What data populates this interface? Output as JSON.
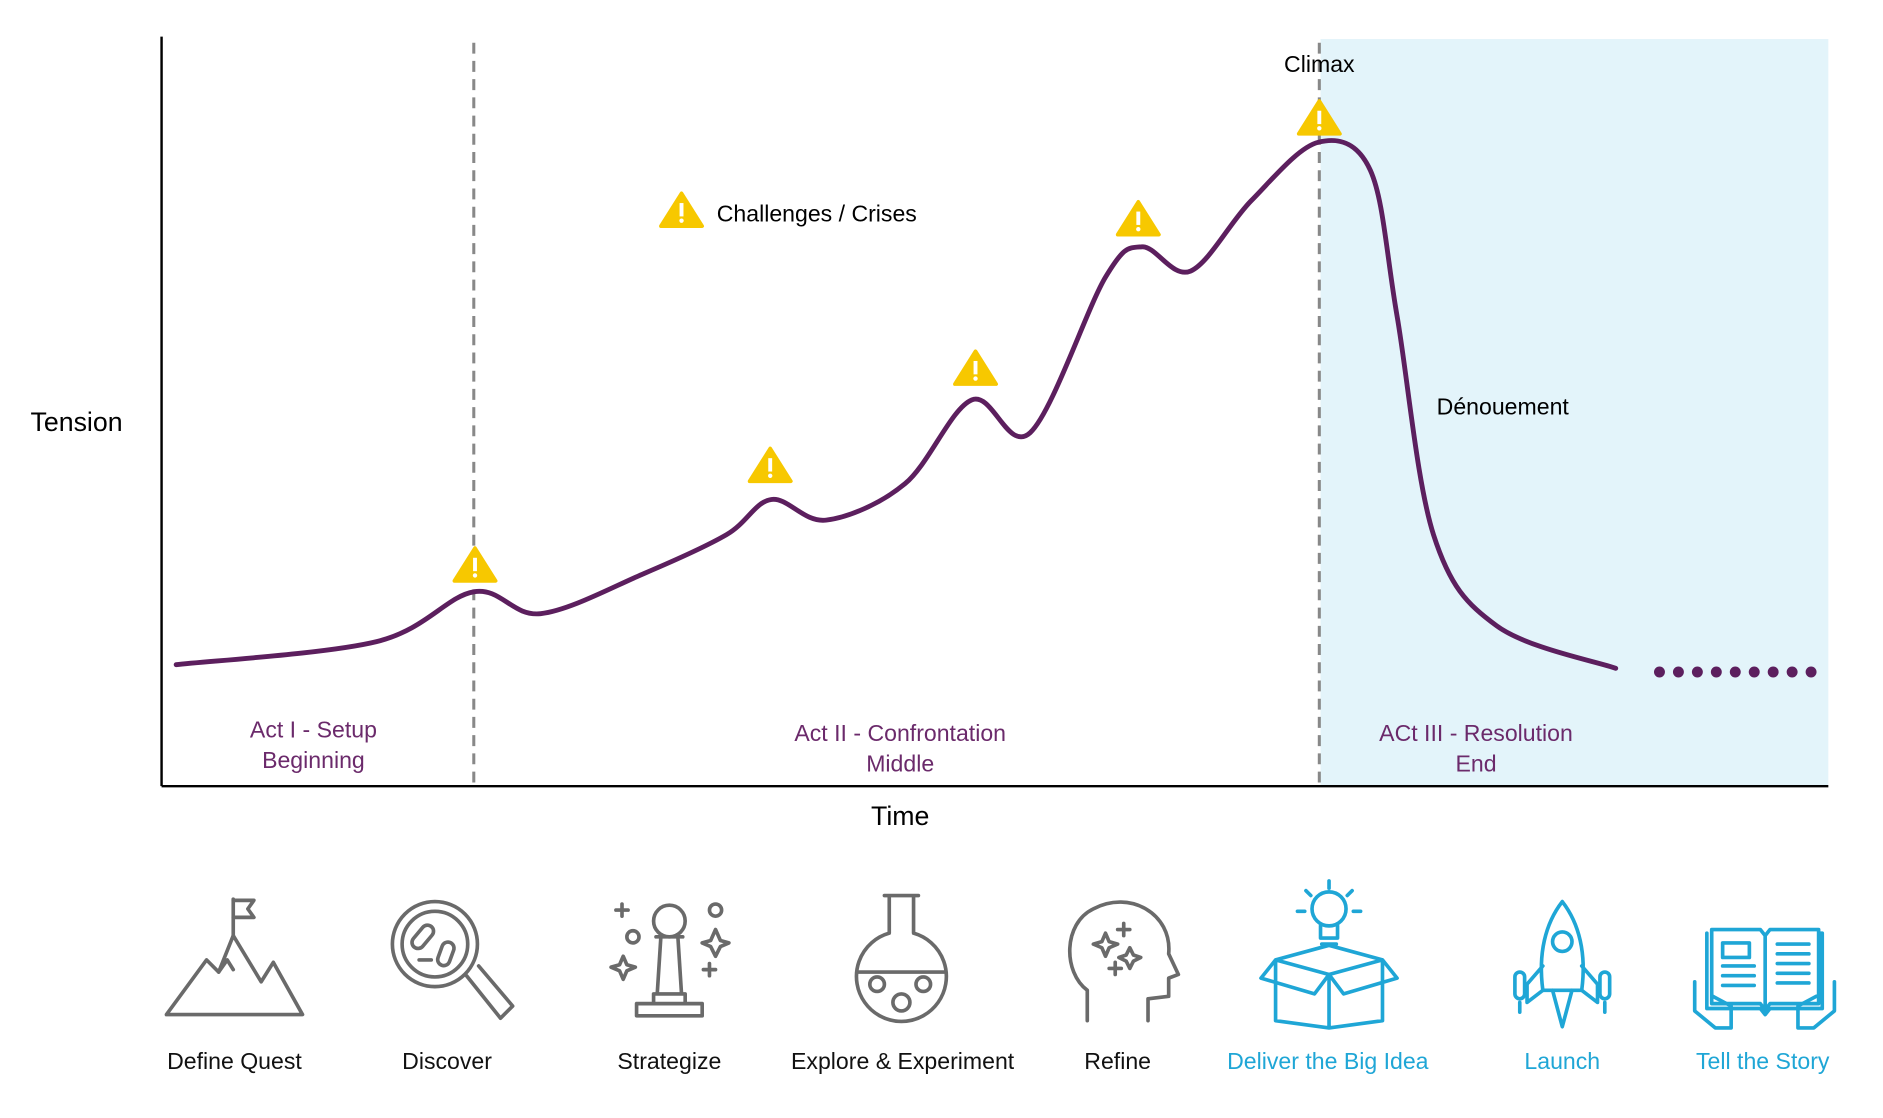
{
  "axes": {
    "y_label": "Tension",
    "x_label": "Time"
  },
  "annotations": {
    "climax": "Climax",
    "challenges": "Challenges / Crises",
    "denouement": "Dénouement"
  },
  "acts": [
    {
      "name": "Act I - Setup",
      "phase": "Beginning"
    },
    {
      "name": "Act II - Confrontation",
      "phase": "Middle"
    },
    {
      "name": "ACt III - Resolution",
      "phase": "End"
    }
  ],
  "steps": [
    {
      "label": "Define Quest"
    },
    {
      "label": "Discover"
    },
    {
      "label": "Strategize"
    },
    {
      "label": "Explore & Experiment"
    },
    {
      "label": "Refine"
    },
    {
      "label": "Deliver the Big Idea"
    },
    {
      "label": "Launch"
    },
    {
      "label": "Tell the Story"
    }
  ]
}
